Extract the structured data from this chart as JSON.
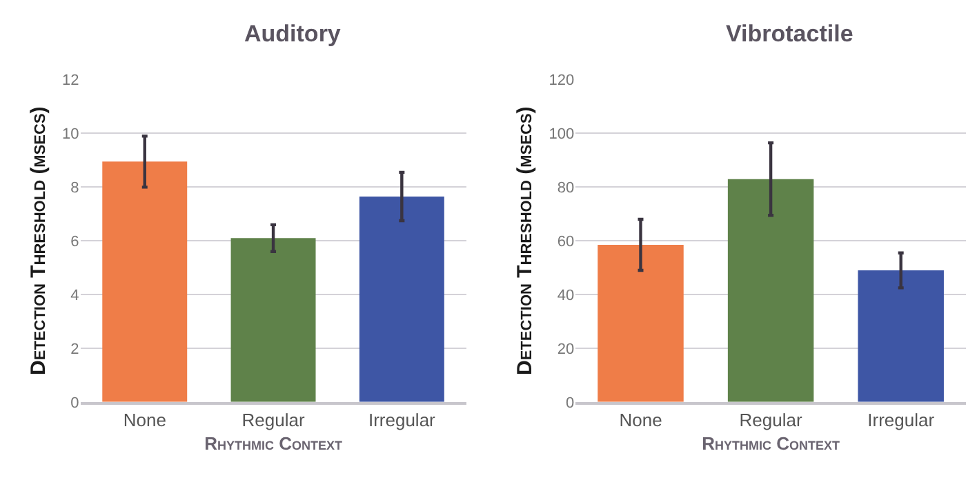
{
  "chart_data": [
    {
      "type": "bar",
      "title": "Auditory",
      "xlabel": "Rhythmic Context",
      "ylabel": "Detection Threshold (msecs)",
      "categories": [
        "None",
        "Regular",
        "Irregular"
      ],
      "values": [
        8.95,
        6.1,
        7.65
      ],
      "errors": [
        0.95,
        0.5,
        0.9
      ],
      "colors": [
        "#ef7d48",
        "#5f824a",
        "#3e56a5"
      ],
      "ylim": [
        0,
        12
      ],
      "yticks": [
        0,
        2,
        4,
        6,
        8,
        10,
        12
      ],
      "grid": "y"
    },
    {
      "type": "bar",
      "title": "Vibrotactile",
      "xlabel": "Rhythmic Context",
      "ylabel": "Detection Threshold (msecs)",
      "categories": [
        "None",
        "Regular",
        "Irregular"
      ],
      "values": [
        58.5,
        83,
        49
      ],
      "errors": [
        9.5,
        13.5,
        6.5
      ],
      "colors": [
        "#ef7d48",
        "#5f824a",
        "#3e56a5"
      ],
      "ylim": [
        0,
        120
      ],
      "yticks": [
        0,
        20,
        40,
        60,
        80,
        100,
        120
      ],
      "grid": "y"
    }
  ]
}
